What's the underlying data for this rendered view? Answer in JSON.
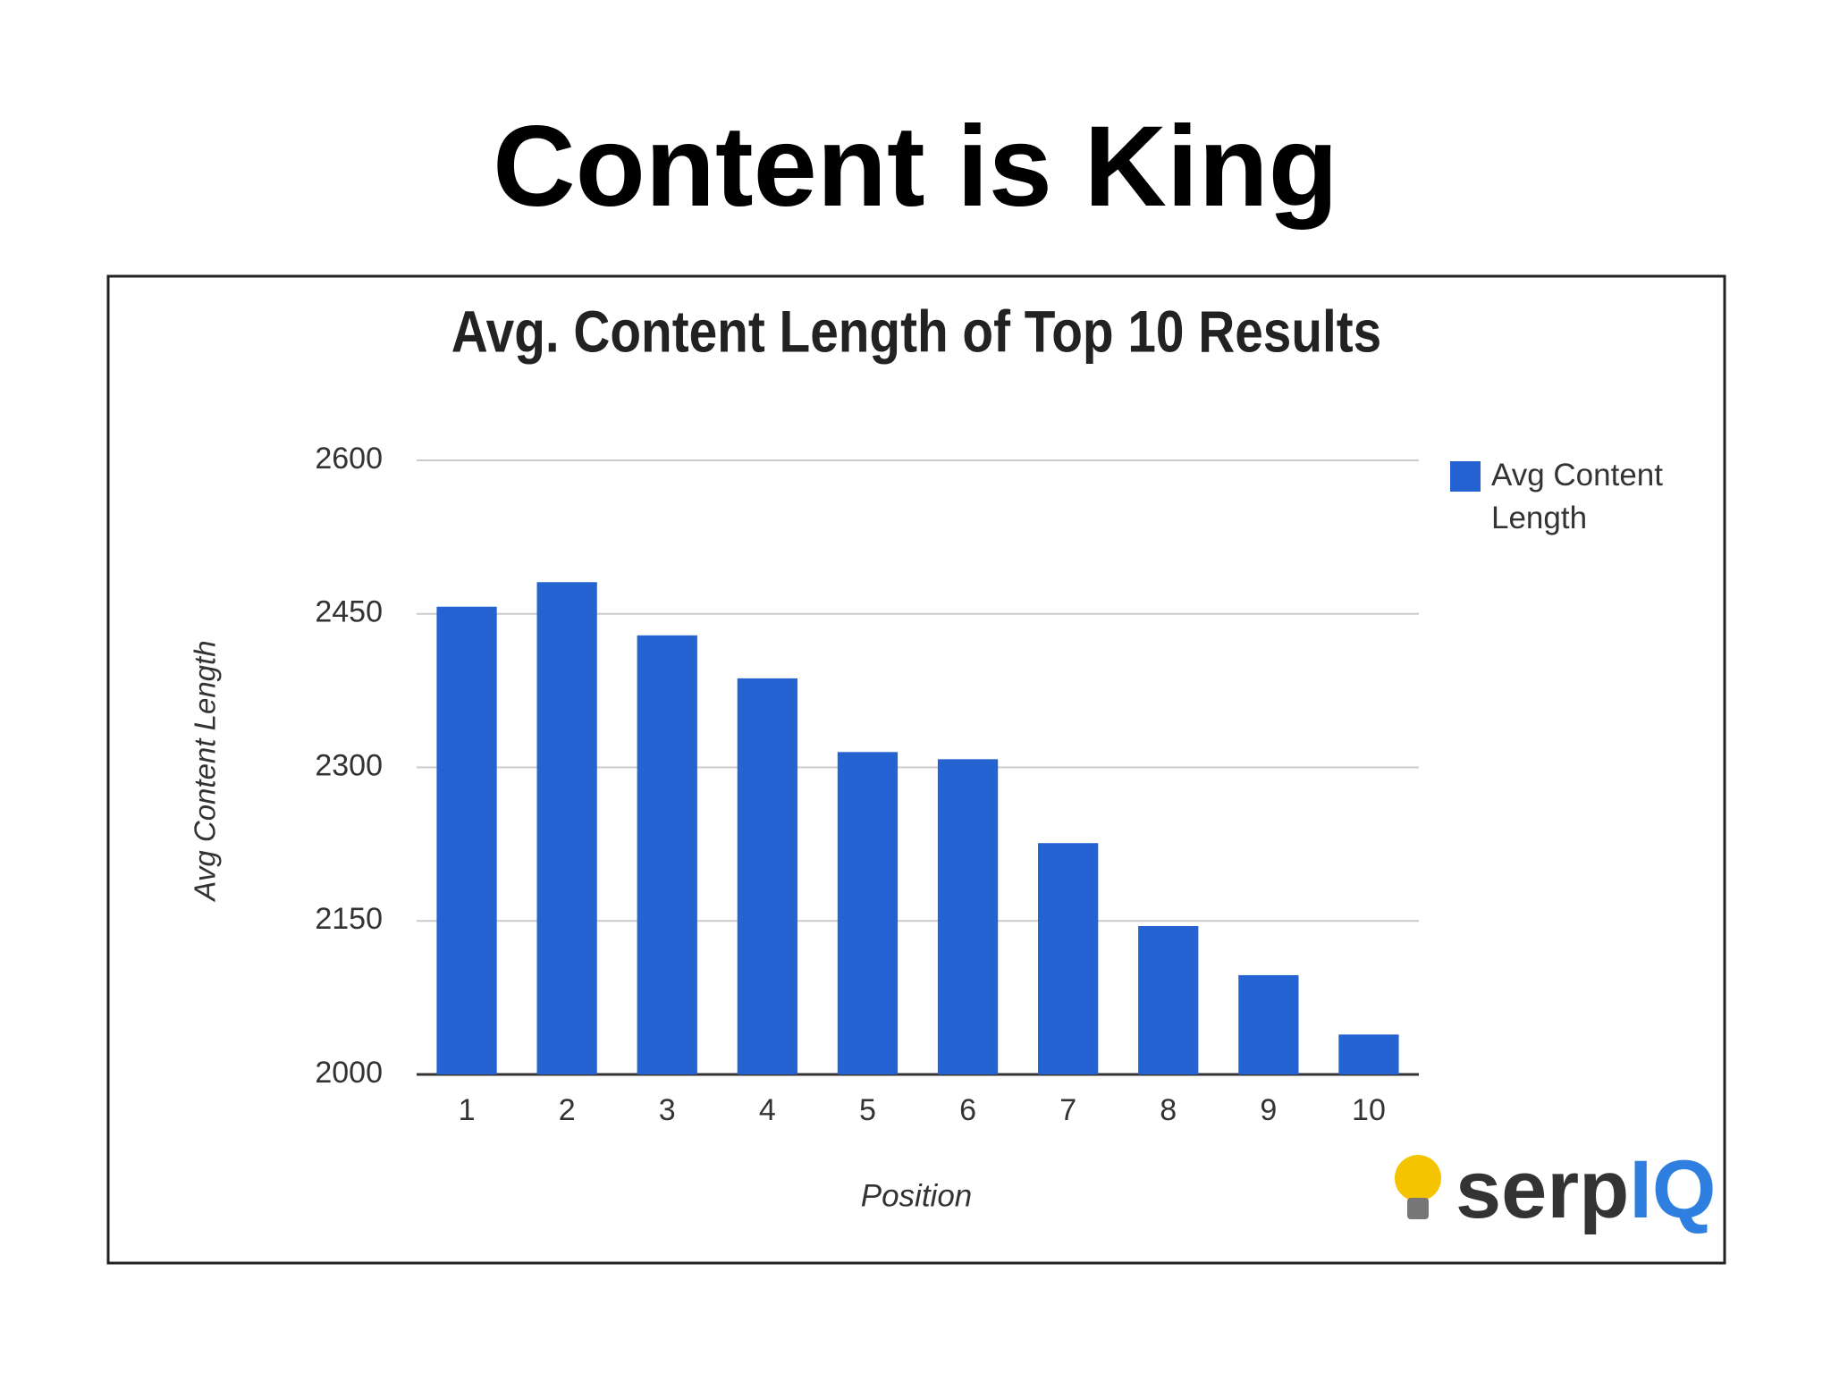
{
  "slide": {
    "title": "Content is King"
  },
  "logo": {
    "text": "serp",
    "accent": "IQ"
  },
  "chart_data": {
    "type": "bar",
    "title": "Avg. Content Length of Top 10 Results",
    "x_label": "Position",
    "y_label": "Avg Content Length",
    "categories": [
      "1",
      "2",
      "3",
      "4",
      "5",
      "6",
      "7",
      "8",
      "9",
      "10"
    ],
    "series": [
      {
        "name": "Avg Content Length",
        "color": "#2463d1",
        "values": [
          2457,
          2481,
          2429,
          2387,
          2315,
          2308,
          2226,
          2145,
          2097,
          2039
        ]
      }
    ],
    "ylim": [
      2000,
      2600
    ],
    "yticks": [
      2000,
      2150,
      2300,
      2450,
      2600
    ],
    "grid": true,
    "legend": "right"
  }
}
